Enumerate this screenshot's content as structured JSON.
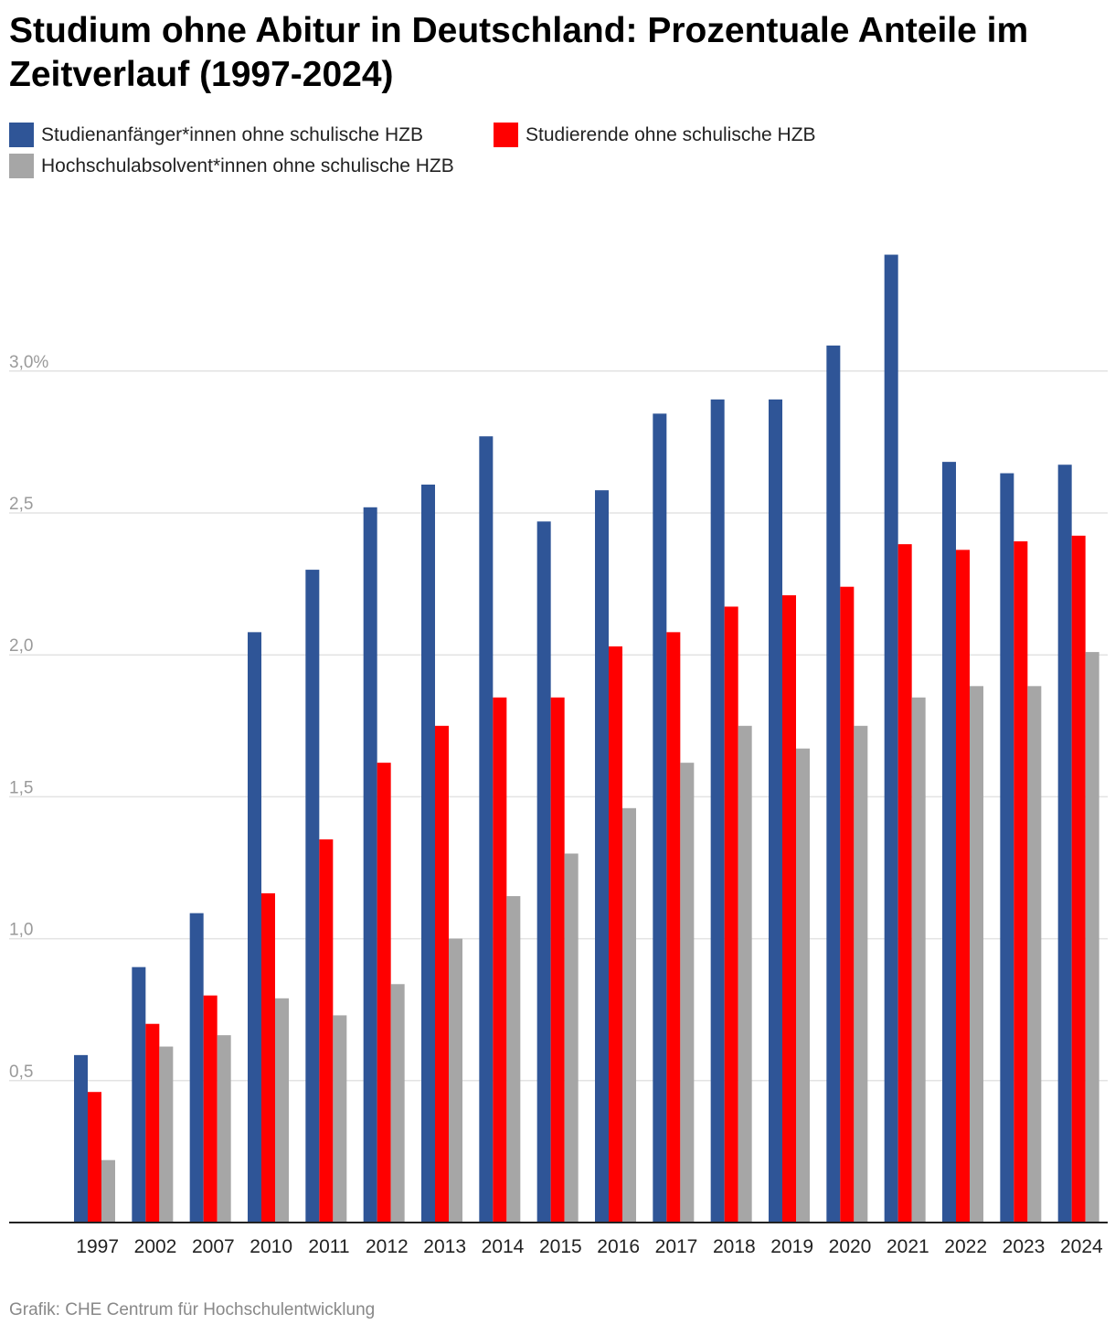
{
  "title": "Studium ohne Abitur in Deutschland: Prozentuale Anteile im Zeitverlauf (1997-2024)",
  "source": "Grafik: CHE Centrum für Hochschulentwicklung",
  "chart_data": {
    "type": "bar",
    "title": "Studium ohne Abitur in Deutschland: Prozentuale Anteile im Zeitverlauf (1997-2024)",
    "xlabel": "",
    "ylabel": "",
    "ylim": [
      0,
      3.5
    ],
    "grid": true,
    "legend_position": "top-left",
    "yticks": [
      {
        "value": 0.5,
        "label": "0,5"
      },
      {
        "value": 1.0,
        "label": "1,0"
      },
      {
        "value": 1.5,
        "label": "1,5"
      },
      {
        "value": 2.0,
        "label": "2,0"
      },
      {
        "value": 2.5,
        "label": "2,5"
      },
      {
        "value": 3.0,
        "label": "3,0%"
      }
    ],
    "categories": [
      "1997",
      "2002",
      "2007",
      "2010",
      "2011",
      "2012",
      "2013",
      "2014",
      "2015",
      "2016",
      "2017",
      "2018",
      "2019",
      "2020",
      "2021",
      "2022",
      "2023",
      "2024"
    ],
    "series": [
      {
        "name": "Studienanfänger*innen ohne schulische HZB",
        "color": "#2f5597",
        "values": [
          0.59,
          0.9,
          1.09,
          2.08,
          2.3,
          2.52,
          2.6,
          2.77,
          2.47,
          2.58,
          2.85,
          2.9,
          2.9,
          3.09,
          3.41,
          2.68,
          2.64,
          2.67
        ]
      },
      {
        "name": "Studierende ohne schulische HZB",
        "color": "#ff0000",
        "values": [
          0.46,
          0.7,
          0.8,
          1.16,
          1.35,
          1.62,
          1.75,
          1.85,
          1.85,
          2.03,
          2.08,
          2.17,
          2.21,
          2.24,
          2.39,
          2.37,
          2.4,
          2.42
        ]
      },
      {
        "name": "Hochschulabsolvent*innen ohne schulische HZB",
        "color": "#a6a6a6",
        "values": [
          0.22,
          0.62,
          0.66,
          0.79,
          0.73,
          0.84,
          1.0,
          1.15,
          1.3,
          1.46,
          1.62,
          1.75,
          1.67,
          1.75,
          1.85,
          1.89,
          1.89,
          2.01
        ]
      }
    ]
  }
}
